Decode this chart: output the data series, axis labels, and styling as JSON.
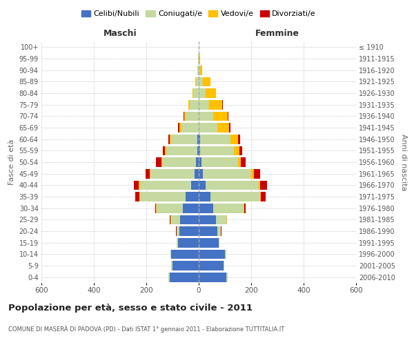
{
  "age_groups": [
    "0-4",
    "5-9",
    "10-14",
    "15-19",
    "20-24",
    "25-29",
    "30-34",
    "35-39",
    "40-44",
    "45-49",
    "50-54",
    "55-59",
    "60-64",
    "65-69",
    "70-74",
    "75-79",
    "80-84",
    "85-89",
    "90-94",
    "95-99",
    "100+"
  ],
  "birth_years": [
    "2006-2010",
    "2001-2005",
    "1996-2000",
    "1991-1995",
    "1986-1990",
    "1981-1985",
    "1976-1980",
    "1971-1975",
    "1966-1970",
    "1961-1965",
    "1956-1960",
    "1951-1955",
    "1946-1950",
    "1941-1945",
    "1936-1940",
    "1931-1935",
    "1926-1930",
    "1921-1925",
    "1916-1920",
    "1911-1915",
    "≤ 1910"
  ],
  "males": {
    "celibi": [
      110,
      100,
      105,
      80,
      75,
      70,
      60,
      50,
      30,
      15,
      10,
      5,
      5,
      0,
      0,
      0,
      0,
      0,
      0,
      0,
      0
    ],
    "coniugati": [
      5,
      5,
      2,
      5,
      10,
      35,
      100,
      175,
      195,
      170,
      130,
      120,
      100,
      65,
      50,
      35,
      20,
      10,
      4,
      2,
      0
    ],
    "vedovi": [
      0,
      0,
      0,
      0,
      0,
      2,
      2,
      2,
      3,
      3,
      2,
      3,
      5,
      10,
      5,
      5,
      5,
      3,
      0,
      0,
      0
    ],
    "divorziati": [
      0,
      0,
      0,
      0,
      1,
      3,
      5,
      15,
      20,
      15,
      20,
      10,
      5,
      5,
      3,
      0,
      0,
      0,
      0,
      0,
      0
    ]
  },
  "females": {
    "nubili": [
      105,
      95,
      100,
      75,
      70,
      65,
      55,
      45,
      25,
      15,
      10,
      5,
      5,
      0,
      0,
      0,
      0,
      0,
      0,
      0,
      0
    ],
    "coniugate": [
      5,
      3,
      5,
      5,
      15,
      40,
      115,
      190,
      205,
      185,
      140,
      130,
      115,
      70,
      55,
      40,
      25,
      15,
      4,
      2,
      0
    ],
    "vedove": [
      0,
      0,
      0,
      0,
      0,
      2,
      3,
      3,
      5,
      10,
      10,
      20,
      30,
      45,
      55,
      50,
      40,
      30,
      10,
      3,
      0
    ],
    "divorziate": [
      0,
      0,
      0,
      0,
      1,
      2,
      5,
      18,
      25,
      25,
      20,
      12,
      8,
      5,
      3,
      3,
      0,
      0,
      0,
      0,
      0
    ]
  },
  "colors": {
    "celibi_nubili": "#4472c4",
    "coniugati_e": "#c5d9a0",
    "vedovi_e": "#ffc000",
    "divorziati_e": "#cc0000"
  },
  "xlim": 600,
  "title": "Popolazione per età, sesso e stato civile - 2011",
  "subtitle": "COMUNE DI MASERÀ DI PADOVA (PD) - Dati ISTAT 1° gennaio 2011 - Elaborazione TUTTITALIA.IT",
  "ylabel_left": "Fasce di età",
  "ylabel_right": "Anni di nascita",
  "xlabel_maschi": "Maschi",
  "xlabel_femmine": "Femmine",
  "legend_labels": [
    "Celibi/Nubili",
    "Coniugati/e",
    "Vedovi/e",
    "Divorziati/e"
  ],
  "background_color": "#ffffff",
  "grid_color": "#cccccc"
}
